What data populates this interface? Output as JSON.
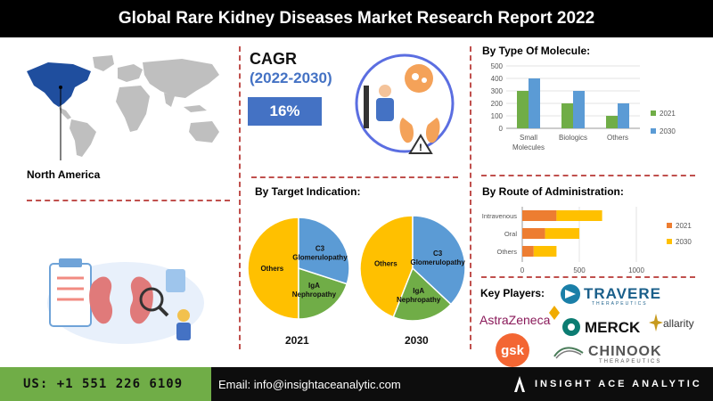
{
  "header": {
    "title": "Global Rare Kidney Diseases Market Research Report 2022"
  },
  "region": {
    "label": "North America"
  },
  "cagr": {
    "label": "CAGR",
    "period": "(2022-2030)",
    "value": "16%"
  },
  "footer": {
    "phone": "US: +1 551 226 6109",
    "email": "Email: info@insightaceanalytic.com",
    "brand": "INSIGHT ACE ANALYTIC"
  },
  "colors": {
    "y2021": "#70ad47",
    "y2030": "#5b9bd5",
    "route2021": "#ed7d31",
    "route2030": "#ffc000",
    "dash": "#c0504d",
    "map_highlight": "#1f4e9e",
    "map_rest": "#bfbfbf",
    "pie_others": "#ffc000",
    "pie_iga": "#70ad47",
    "pie_c3": "#5b9bd5"
  },
  "key_players": {
    "title": "Key Players:",
    "companies": [
      "TRAVERE",
      "THERAPEUTICS",
      "AstraZeneca",
      "MERCK",
      "allarity",
      "gsk",
      "CHINOOK",
      "THERAPEUTICS"
    ]
  },
  "chart_data": [
    {
      "type": "bar",
      "title": "By Type Of Molecule:",
      "categories": [
        "Small Molecules",
        "Biologics",
        "Others"
      ],
      "category_lines": [
        [
          "Small",
          "Molecules"
        ],
        [
          "Biologics"
        ],
        [
          "Others"
        ]
      ],
      "series": [
        {
          "name": "2021",
          "values": [
            300,
            200,
            100
          ]
        },
        {
          "name": "2030",
          "values": [
            400,
            300,
            200
          ]
        }
      ],
      "ylim": [
        0,
        500
      ],
      "yticks": [
        "0",
        "100",
        "200",
        "300",
        "400",
        "500"
      ],
      "legend": "right"
    },
    {
      "type": "bar",
      "orientation": "horizontal",
      "stacked": true,
      "title": "By  Route of Administration:",
      "categories": [
        "Intravenous",
        "Oral",
        "Others"
      ],
      "series": [
        {
          "name": "2021",
          "values": [
            300,
            200,
            100
          ]
        },
        {
          "name": "2030",
          "values": [
            400,
            300,
            200
          ]
        }
      ],
      "xlim": [
        0,
        1000
      ],
      "xticks": [
        "0",
        "500",
        "1000"
      ],
      "legend": "right"
    },
    {
      "type": "pie",
      "title": "By Target Indication:",
      "label": "2021",
      "slices": [
        {
          "name": "Others",
          "value": 50
        },
        {
          "name": "IgA Nephropathy",
          "value": 20
        },
        {
          "name": "C3 Glomerulopathy",
          "value": 30
        }
      ]
    },
    {
      "type": "pie",
      "label": "2030",
      "slices": [
        {
          "name": "Others",
          "value": 44
        },
        {
          "name": "IgA Nephropathy",
          "value": 19
        },
        {
          "name": "C3 Glomerulopathy",
          "value": 37
        }
      ]
    }
  ]
}
